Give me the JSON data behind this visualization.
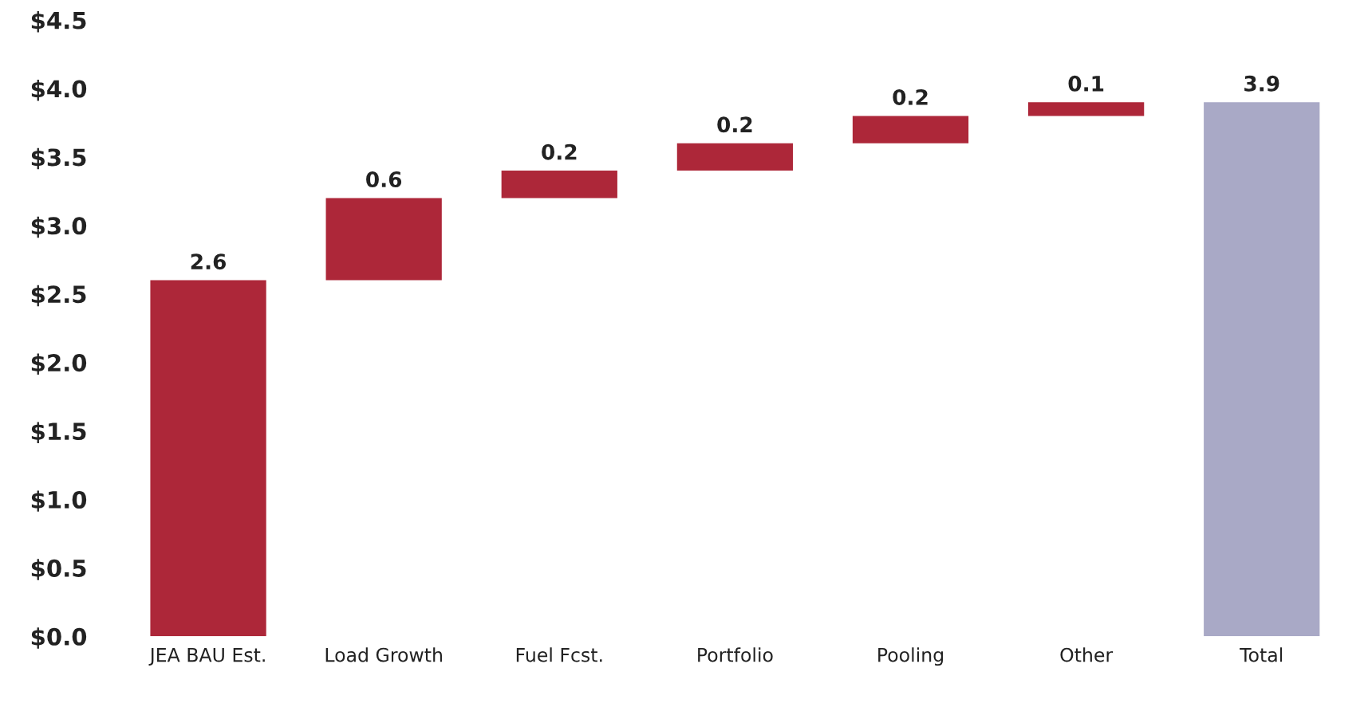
{
  "chart_data": {
    "type": "bar",
    "categories": [
      "JEA BAU Est.",
      "Load Growth",
      "Fuel Fcst.",
      "Portfolio",
      "Pooling",
      "Other",
      "Total"
    ],
    "values": [
      2.6,
      0.6,
      0.2,
      0.2,
      0.2,
      0.1,
      3.9
    ],
    "base": [
      0,
      2.6,
      3.2,
      3.4,
      3.6,
      3.8,
      0
    ],
    "colors": [
      "#ad2739",
      "#ad2739",
      "#ad2739",
      "#ad2739",
      "#ad2739",
      "#ad2739",
      "#a9a9c6"
    ],
    "data_labels": true,
    "ylim": [
      0,
      4.5
    ],
    "yticks": [
      {
        "value": 0,
        "label": "$0.0"
      },
      {
        "value": 0.5,
        "label": "$0.5"
      },
      {
        "value": 1.0,
        "label": "$1.0"
      },
      {
        "value": 1.5,
        "label": "$1.5"
      },
      {
        "value": 2.0,
        "label": "$2.0"
      },
      {
        "value": 2.5,
        "label": "$2.5"
      },
      {
        "value": 3.0,
        "label": "$3.0"
      },
      {
        "value": 3.5,
        "label": "$3.5"
      },
      {
        "value": 4.0,
        "label": "$4.0"
      },
      {
        "value": 4.5,
        "label": "$4.5"
      }
    ],
    "grid": false
  }
}
